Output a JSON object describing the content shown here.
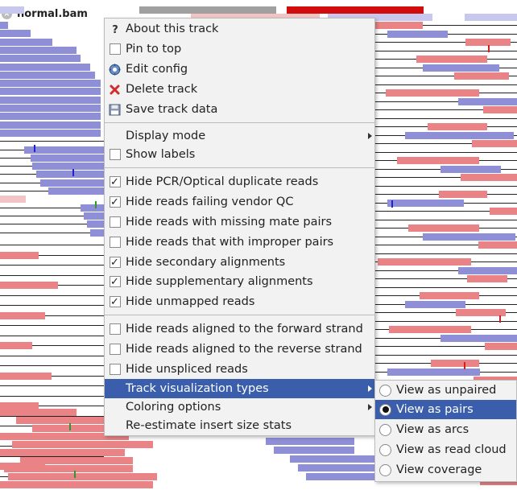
{
  "track": {
    "name": "normal.bam"
  },
  "menu": {
    "items": [
      {
        "id": "about",
        "label": "About this track",
        "icon": "help-icon"
      },
      {
        "id": "pin",
        "label": "Pin to top",
        "icon": "checkbox",
        "checked": false
      },
      {
        "id": "edit",
        "label": "Edit config",
        "icon": "gear-icon"
      },
      {
        "id": "delete",
        "label": "Delete track",
        "icon": "delete-icon"
      },
      {
        "id": "save",
        "label": "Save track data",
        "icon": "save-icon"
      },
      {
        "id": "display",
        "label": "Display mode",
        "submenu": true
      },
      {
        "id": "labels",
        "label": "Show labels",
        "icon": "checkbox",
        "checked": false
      },
      {
        "id": "hide_dup",
        "label": "Hide PCR/Optical duplicate reads",
        "icon": "checkbox",
        "checked": true
      },
      {
        "id": "hide_qc",
        "label": "Hide reads failing vendor QC",
        "icon": "checkbox",
        "checked": true
      },
      {
        "id": "hide_mate",
        "label": "Hide reads with missing mate pairs",
        "icon": "checkbox",
        "checked": false
      },
      {
        "id": "hide_improper",
        "label": "Hide reads that with improper pairs",
        "icon": "checkbox",
        "checked": false
      },
      {
        "id": "hide_secondary",
        "label": "Hide secondary alignments",
        "icon": "checkbox",
        "checked": true
      },
      {
        "id": "hide_supp",
        "label": "Hide supplementary alignments",
        "icon": "checkbox",
        "checked": true
      },
      {
        "id": "hide_unmapped",
        "label": "Hide unmapped reads",
        "icon": "checkbox",
        "checked": true
      },
      {
        "id": "hide_fwd",
        "label": "Hide reads aligned to the forward strand",
        "icon": "checkbox",
        "checked": false
      },
      {
        "id": "hide_rev",
        "label": "Hide reads aligned to the reverse strand",
        "icon": "checkbox",
        "checked": false
      },
      {
        "id": "hide_unspliced",
        "label": "Hide unspliced reads",
        "icon": "checkbox",
        "checked": false
      },
      {
        "id": "vis_types",
        "label": "Track visualization types",
        "submenu": true,
        "highlighted": true
      },
      {
        "id": "coloring",
        "label": "Coloring options",
        "submenu": true
      },
      {
        "id": "reestimate",
        "label": "Re-estimate insert size stats"
      }
    ]
  },
  "submenu": {
    "items": [
      {
        "id": "unpaired",
        "label": "View as unpaired",
        "selected": false
      },
      {
        "id": "pairs",
        "label": "View as pairs",
        "selected": true
      },
      {
        "id": "arcs",
        "label": "View as arcs",
        "selected": false
      },
      {
        "id": "cloud",
        "label": "View as read cloud",
        "selected": false
      },
      {
        "id": "coverage",
        "label": "View coverage",
        "selected": false
      }
    ]
  },
  "colors": {
    "highlight": "#3a5eab",
    "forward_read": "#e98385",
    "reverse_read": "#8f8fd8",
    "menu_bg": "#f2f2f2"
  }
}
